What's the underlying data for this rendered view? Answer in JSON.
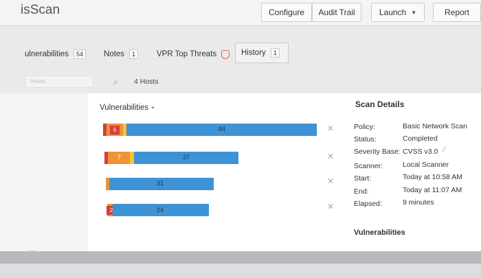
{
  "app": {
    "title": "isScan"
  },
  "toolbar": {
    "configure": "Configure",
    "audit_trail": "Audit Trail",
    "launch": "Launch",
    "report": "Report"
  },
  "tabs": [
    {
      "label": "ulnerabilities",
      "count": "54"
    },
    {
      "label": "Notes",
      "count": "1"
    },
    {
      "label": "VPR Top Threats",
      "icon": "shield-icon"
    },
    {
      "label": "History",
      "count": "1"
    }
  ],
  "filter": {
    "hosts_placeholder": "Hosts",
    "hosts_count": "4 Hosts"
  },
  "vulnerabilities": {
    "header": "Vulnerabilities",
    "header_dot": "•",
    "rows": [
      {
        "critical": "6",
        "medium": "84"
      },
      {
        "high": "7",
        "medium": "37"
      },
      {
        "medium": "31"
      },
      {
        "critical": "2",
        "medium": "24"
      }
    ]
  },
  "scan_details": {
    "title": "Scan Details",
    "policy_label": "Policy:",
    "policy": "Basic Network Scan",
    "status_label": "Status:",
    "status": "Completed",
    "severity_label": "Severity Base:",
    "severity": "CVSS v3.0",
    "scanner_label": "Scanner:",
    "scanner": "Local Scanner",
    "start_label": "Start:",
    "start": "Today at 10:58 AM",
    "end_label": "End:",
    "end": "Today at 11:07 AM",
    "elapsed_label": "Elapsed:",
    "elapsed": "9 minutes"
  },
  "vulnerabilities_section": "Vulnerabilities",
  "collapse_label": "<<",
  "colors": {
    "critical": "#d43f3a",
    "high": "#ee9336",
    "medium": "#fdc431",
    "info": "#3d93d6"
  }
}
